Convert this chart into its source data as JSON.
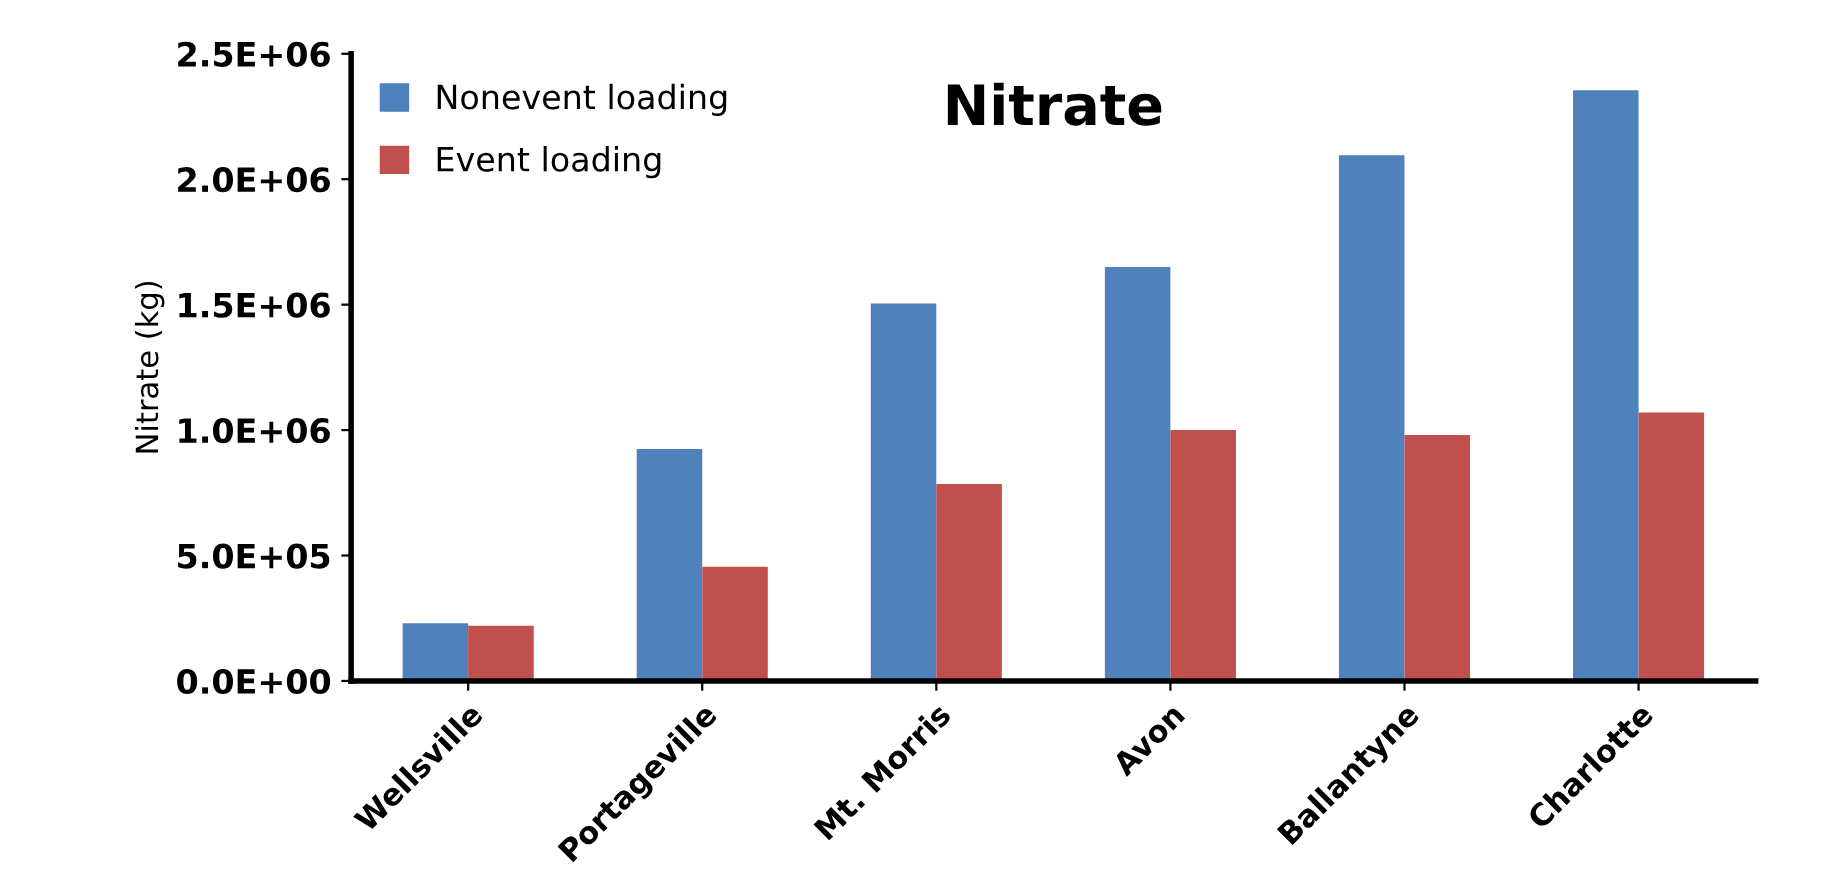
{
  "chart_data": {
    "type": "bar",
    "title": "Nitrate",
    "ylabel": "Nitrate (kg)",
    "categories": [
      "Wellsville",
      "Portageville",
      "Mt. Morris",
      "Avon",
      "Ballantyne",
      "Charlotte"
    ],
    "series": [
      {
        "name": "Nonevent loading",
        "color": "#4f81bd",
        "values": [
          230000,
          925000,
          1505000,
          1650000,
          2095000,
          2355000
        ]
      },
      {
        "name": "Event loading",
        "color": "#c0504d",
        "values": [
          220000,
          455000,
          785000,
          1000000,
          980000,
          1070000
        ]
      }
    ],
    "ylim": [
      0,
      2500000
    ],
    "yticks": [
      {
        "value": 0,
        "label": "0.0E+00"
      },
      {
        "value": 500000,
        "label": "5.0E+05"
      },
      {
        "value": 1000000,
        "label": "1.0E+06"
      },
      {
        "value": 1500000,
        "label": "1.5E+06"
      },
      {
        "value": 2000000,
        "label": "2.0E+06"
      },
      {
        "value": 2500000,
        "label": "2.5E+06"
      }
    ],
    "grid": false,
    "legend": "top left"
  }
}
